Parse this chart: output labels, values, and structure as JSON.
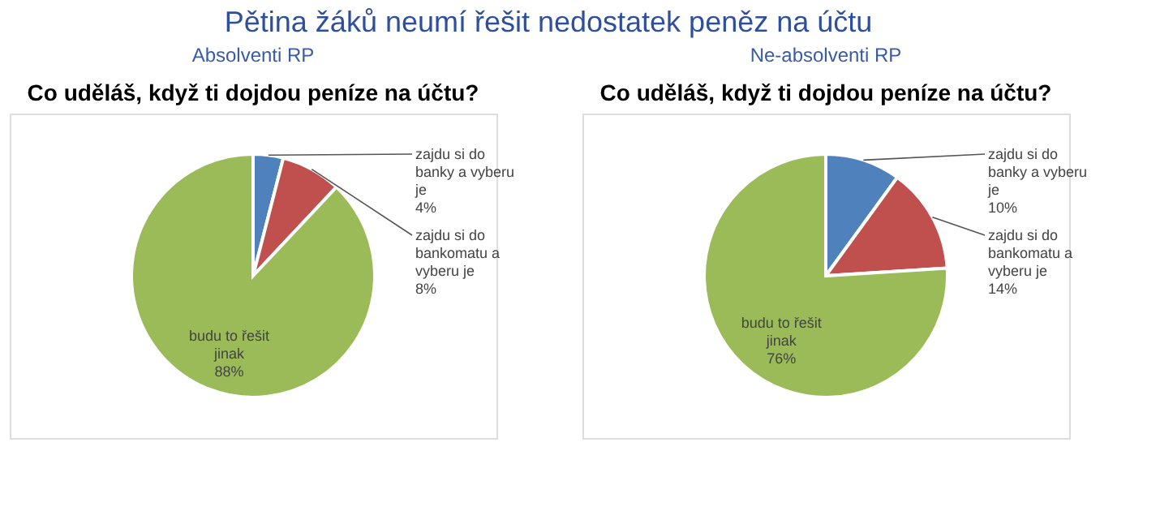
{
  "chart_data": [
    {
      "type": "pie",
      "annotations": [
        "Pětina žáků neumí řešit nedostatek peněz na účtu"
      ],
      "subtitle": "Absolventi RP",
      "title": "Co uděláš, když ti dojdou peníze na účtu?",
      "categories": [
        "zajdu si do banky a vyberu je",
        "zajdu si do bankomatu a vyberu je",
        "budu to řešit jinak"
      ],
      "values": [
        4,
        8,
        88
      ],
      "value_labels": [
        "4%",
        "8%",
        "88%"
      ],
      "colors": [
        "#4f81bd",
        "#c0504d",
        "#9bbb59"
      ],
      "legend": false
    },
    {
      "type": "pie",
      "subtitle": "Ne-absolventi RP",
      "title": "Co uděláš, když ti dojdou peníze na účtu?",
      "categories": [
        "zajdu si do banky a vyberu je",
        "zajdu si do bankomatu a vyberu je",
        "budu to řešit jinak"
      ],
      "values": [
        10,
        14,
        76
      ],
      "value_labels": [
        "10%",
        "14%",
        "76%"
      ],
      "colors": [
        "#4f81bd",
        "#c0504d",
        "#9bbb59"
      ],
      "legend": false
    }
  ]
}
